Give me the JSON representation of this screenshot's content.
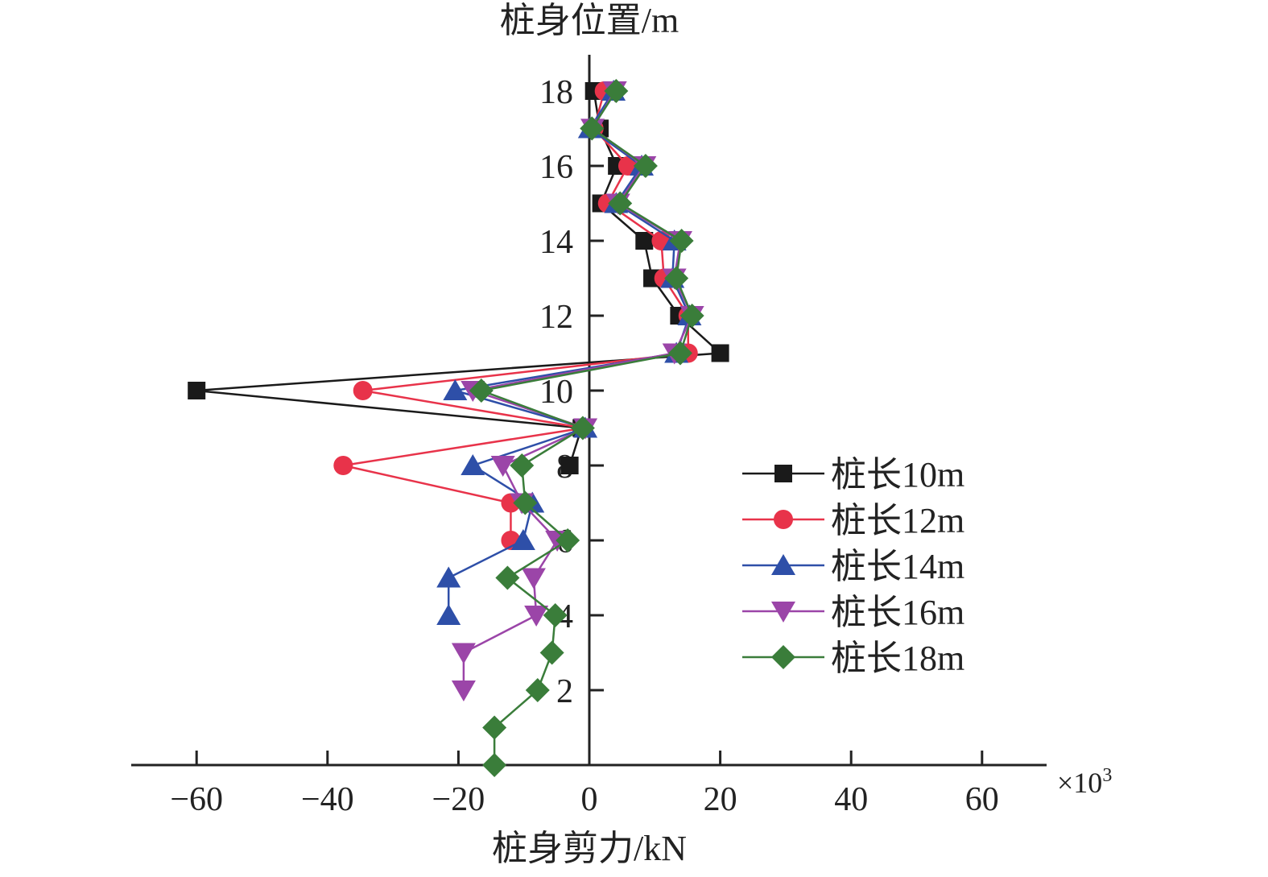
{
  "chart_data": {
    "type": "line",
    "title": "",
    "xlabel": "桩身剪力/kN",
    "ylabel": "桩身位置/m",
    "x_multiplier_label": "×10",
    "x_multiplier_exp": "3",
    "xlim": [
      -70,
      70
    ],
    "ylim": [
      0,
      19
    ],
    "xticks": [
      -60,
      -40,
      -20,
      0,
      20,
      40,
      60
    ],
    "xtick_labels": [
      "−60",
      "−40",
      "−20",
      "0",
      "20",
      "40",
      "60"
    ],
    "yticks": [
      2,
      4,
      6,
      8,
      10,
      12,
      14,
      16,
      18
    ],
    "ytick_labels": [
      "2",
      "4",
      "6",
      "8",
      "10",
      "12",
      "14",
      "16",
      "18"
    ],
    "grid": false,
    "legend_position": "right",
    "series": [
      {
        "name": "桩长10m",
        "color": "#1a1a1a",
        "marker": "square",
        "y": [
          18,
          17,
          16,
          15,
          14,
          13,
          12,
          11,
          10,
          9,
          8
        ],
        "x": [
          0.7,
          1.6,
          4.2,
          1.8,
          8.4,
          9.6,
          13.7,
          20,
          -60,
          -1.2,
          -3
        ]
      },
      {
        "name": "桩长12m",
        "color": "#e8334a",
        "marker": "circle",
        "y": [
          18,
          17,
          16,
          15,
          14,
          13,
          12,
          11,
          10,
          9,
          8,
          7,
          6
        ],
        "x": [
          2.3,
          0.7,
          5.9,
          2.8,
          11,
          11.4,
          15.1,
          15.1,
          -34.6,
          -0.9,
          -37.6,
          -12,
          -12
        ]
      },
      {
        "name": "桩长14m",
        "color": "#2e4fa8",
        "marker": "triangle-up",
        "y": [
          18,
          17,
          16,
          15,
          14,
          13,
          12,
          11,
          10,
          9,
          8,
          7,
          6,
          5,
          4
        ],
        "x": [
          3.7,
          0.1,
          8,
          4.1,
          13,
          12.7,
          15.3,
          13.3,
          -20.5,
          -0.6,
          -17.8,
          -8.7,
          -10.1,
          -21.5,
          -21.5
        ]
      },
      {
        "name": "桩长16m",
        "color": "#9b45a8",
        "marker": "triangle-down",
        "y": [
          18,
          17,
          16,
          15,
          14,
          13,
          12,
          11,
          10,
          9,
          8,
          7,
          6,
          5,
          4,
          3,
          2
        ],
        "x": [
          3.9,
          0.5,
          8.4,
          4.4,
          13.9,
          13,
          15.7,
          13,
          -17.8,
          -0.6,
          -13.2,
          -10.3,
          -4.9,
          -8.5,
          -8.1,
          -19.2,
          -19.2
        ]
      },
      {
        "name": "桩长18m",
        "color": "#3a7d3a",
        "marker": "diamond",
        "y": [
          18,
          17,
          16,
          15,
          14,
          13,
          12,
          11,
          10,
          9,
          8,
          7,
          6,
          5,
          4,
          3,
          2,
          1,
          0
        ],
        "x": [
          4.1,
          0.4,
          8.6,
          4.7,
          14.1,
          13.3,
          15.7,
          13.9,
          -16.5,
          -1,
          -10.3,
          -9.8,
          -3.3,
          -12.5,
          -5.2,
          -5.7,
          -7.9,
          -14.5,
          -14.5
        ]
      }
    ]
  }
}
